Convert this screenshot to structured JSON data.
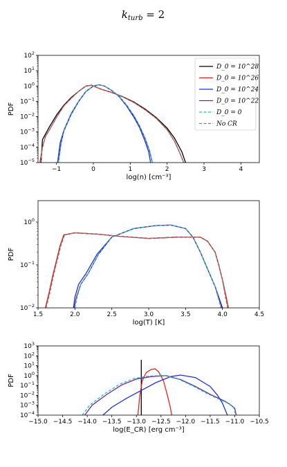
{
  "figure": {
    "suptitle": "k_turb = 2",
    "suptitle_main": "k",
    "suptitle_sub": "turb",
    "suptitle_rest": " = 2"
  },
  "legend": {
    "placement": "top-right of first panel",
    "entries": [
      {
        "label": "D_0 = 10^28",
        "color": "#000000",
        "dash": "solid"
      },
      {
        "label": "D_0 = 10^26",
        "color": "#e8231a",
        "dash": "solid"
      },
      {
        "label": "D_0 = 10^24",
        "color": "#1f2fd6",
        "dash": "solid"
      },
      {
        "label": "D_0 = 10^22",
        "color": "#7b1f86",
        "dash": "solid"
      },
      {
        "label": "D_0 = 0",
        "color": "#17becf",
        "dash": "dashed"
      },
      {
        "label": "No CR",
        "color": "#808080",
        "dash": "dashed"
      }
    ]
  },
  "chart_data": [
    {
      "type": "line",
      "xlabel": "log(n) [cm^-3]",
      "ylabel": "PDF",
      "xlim": [
        -1.5,
        4.5
      ],
      "ylim_log10": [
        -5,
        2
      ],
      "yscale": "log",
      "xticks": [
        -1,
        0,
        1,
        2,
        3,
        4
      ],
      "series": [
        {
          "name": "D_0 = 10^28",
          "color": "#000000",
          "dash": "solid",
          "x": [
            -1.42,
            -1.38,
            -1.3,
            -1.2,
            -1.0,
            -0.8,
            -0.6,
            -0.4,
            -0.2,
            -0.05,
            0.2,
            0.5,
            0.8,
            1.1,
            1.4,
            1.7,
            2.0,
            2.2,
            2.4,
            2.5
          ],
          "logy": [
            -5.0,
            -3.5,
            -3.15,
            -2.7,
            -1.9,
            -1.25,
            -0.75,
            -0.35,
            0.0,
            0.05,
            -0.2,
            -0.42,
            -0.7,
            -1.05,
            -1.5,
            -2.05,
            -2.75,
            -3.4,
            -4.3,
            -5.0
          ]
        },
        {
          "name": "D_0 = 10^26",
          "color": "#e8231a",
          "dash": "solid",
          "x": [
            -1.45,
            -1.38,
            -1.3,
            -1.2,
            -1.0,
            -0.8,
            -0.6,
            -0.4,
            -0.2,
            -0.05,
            0.2,
            0.5,
            0.8,
            1.1,
            1.4,
            1.7,
            2.0,
            2.2,
            2.35,
            2.45
          ],
          "logy": [
            -5.0,
            -4.0,
            -3.3,
            -2.9,
            -2.05,
            -1.3,
            -0.8,
            -0.35,
            0.0,
            0.04,
            -0.2,
            -0.43,
            -0.72,
            -1.08,
            -1.55,
            -2.1,
            -2.85,
            -3.6,
            -4.4,
            -5.0
          ]
        },
        {
          "name": "D_0 = 10^24",
          "color": "#1f2fd6",
          "dash": "solid",
          "x": [
            -0.97,
            -0.9,
            -0.8,
            -0.6,
            -0.4,
            -0.2,
            0.0,
            0.15,
            0.3,
            0.5,
            0.7,
            0.9,
            1.1,
            1.25,
            1.4,
            1.5,
            1.55
          ],
          "logy": [
            -5.0,
            -3.7,
            -2.9,
            -1.8,
            -1.0,
            -0.35,
            0.0,
            0.08,
            0.0,
            -0.3,
            -0.7,
            -1.3,
            -2.05,
            -2.7,
            -3.6,
            -4.3,
            -5.0
          ]
        },
        {
          "name": "D_0 = 10^22",
          "color": "#7b1f86",
          "dash": "solid",
          "x": [
            -0.95,
            -0.88,
            -0.8,
            -0.6,
            -0.4,
            -0.2,
            0.0,
            0.15,
            0.3,
            0.5,
            0.7,
            0.9,
            1.1,
            1.25,
            1.4,
            1.52,
            1.6
          ],
          "logy": [
            -5.0,
            -3.8,
            -2.95,
            -1.85,
            -1.02,
            -0.36,
            0.0,
            0.08,
            0.0,
            -0.3,
            -0.68,
            -1.25,
            -1.95,
            -2.6,
            -3.4,
            -4.2,
            -5.0
          ]
        },
        {
          "name": "D_0 = 0",
          "color": "#17becf",
          "dash": "dashed",
          "x": [
            -0.95,
            -0.88,
            -0.8,
            -0.6,
            -0.4,
            -0.2,
            0.0,
            0.15,
            0.3,
            0.5,
            0.7,
            0.9,
            1.1,
            1.25,
            1.4,
            1.52,
            1.6
          ],
          "logy": [
            -5.0,
            -3.8,
            -2.95,
            -1.85,
            -1.02,
            -0.36,
            0.0,
            0.08,
            0.0,
            -0.3,
            -0.68,
            -1.25,
            -1.95,
            -2.6,
            -3.4,
            -4.2,
            -5.0
          ]
        },
        {
          "name": "No CR",
          "color": "#808080",
          "dash": "dashed",
          "x": [
            -1.43,
            -1.38,
            -1.3,
            -1.2,
            -1.0,
            -0.8,
            -0.6,
            -0.4,
            -0.2,
            -0.05,
            0.2,
            0.5,
            0.8,
            1.1,
            1.4,
            1.7,
            2.0,
            2.2,
            2.35,
            2.45
          ],
          "logy": [
            -5.0,
            -4.0,
            -3.3,
            -2.9,
            -2.05,
            -1.3,
            -0.8,
            -0.35,
            0.0,
            0.04,
            -0.2,
            -0.43,
            -0.72,
            -1.08,
            -1.55,
            -2.1,
            -2.85,
            -3.6,
            -4.4,
            -5.0
          ]
        }
      ]
    },
    {
      "type": "line",
      "xlabel": "log(T) [K]",
      "ylabel": "PDF",
      "xlim": [
        1.5,
        4.5
      ],
      "ylim_log10": [
        -2,
        0.5
      ],
      "yscale": "log",
      "xticks": [
        1.5,
        2.0,
        2.5,
        3.0,
        3.5,
        4.0,
        4.5
      ],
      "series": [
        {
          "name": "D_0 = 10^28",
          "color": "#000000",
          "dash": "solid",
          "x": [
            1.6,
            1.65,
            1.7,
            1.75,
            1.8,
            1.85,
            2.0,
            2.3,
            2.6,
            3.0,
            3.4,
            3.7,
            3.8,
            3.9,
            3.95,
            4.0,
            4.05,
            4.08
          ],
          "logy": [
            -2.0,
            -1.65,
            -1.25,
            -0.9,
            -0.55,
            -0.3,
            -0.25,
            -0.28,
            -0.33,
            -0.38,
            -0.35,
            -0.35,
            -0.45,
            -0.7,
            -1.0,
            -1.35,
            -1.75,
            -2.0
          ]
        },
        {
          "name": "D_0 = 10^26",
          "color": "#e8231a",
          "dash": "solid",
          "x": [
            1.6,
            1.65,
            1.7,
            1.75,
            1.8,
            1.85,
            2.0,
            2.3,
            2.6,
            3.0,
            3.4,
            3.7,
            3.8,
            3.9,
            3.95,
            4.0,
            4.05,
            4.08
          ],
          "logy": [
            -2.0,
            -1.65,
            -1.25,
            -0.9,
            -0.55,
            -0.3,
            -0.25,
            -0.28,
            -0.33,
            -0.38,
            -0.35,
            -0.35,
            -0.45,
            -0.7,
            -1.0,
            -1.35,
            -1.75,
            -2.0
          ]
        },
        {
          "name": "D_0 = 10^24",
          "color": "#1f2fd6",
          "dash": "solid",
          "x": [
            1.98,
            2.0,
            2.05,
            2.15,
            2.3,
            2.5,
            2.8,
            3.1,
            3.3,
            3.5,
            3.6,
            3.7,
            3.8,
            3.9,
            4.0
          ],
          "logy": [
            -2.0,
            -1.75,
            -1.45,
            -1.2,
            -0.75,
            -0.35,
            -0.15,
            -0.08,
            -0.07,
            -0.15,
            -0.35,
            -0.7,
            -1.1,
            -1.5,
            -2.0
          ]
        },
        {
          "name": "D_0 = 10^22",
          "color": "#7b1f86",
          "dash": "solid",
          "x": [
            1.99,
            2.02,
            2.08,
            2.18,
            2.32,
            2.5,
            2.8,
            3.1,
            3.3,
            3.5,
            3.6,
            3.7,
            3.8,
            3.9,
            3.99
          ],
          "logy": [
            -2.0,
            -1.75,
            -1.45,
            -1.2,
            -0.75,
            -0.35,
            -0.15,
            -0.08,
            -0.07,
            -0.15,
            -0.35,
            -0.7,
            -1.1,
            -1.5,
            -2.0
          ]
        },
        {
          "name": "D_0 = 0",
          "color": "#17becf",
          "dash": "dashed",
          "x": [
            2.0,
            2.03,
            2.08,
            2.18,
            2.32,
            2.5,
            2.8,
            3.1,
            3.3,
            3.5,
            3.6,
            3.7,
            3.8,
            3.9,
            3.98
          ],
          "logy": [
            -2.0,
            -1.75,
            -1.45,
            -1.2,
            -0.75,
            -0.35,
            -0.15,
            -0.08,
            -0.07,
            -0.15,
            -0.35,
            -0.7,
            -1.1,
            -1.5,
            -2.0
          ]
        },
        {
          "name": "No CR",
          "color": "#808080",
          "dash": "dashed",
          "x": [
            1.61,
            1.66,
            1.71,
            1.76,
            1.81,
            1.86,
            2.0,
            2.3,
            2.6,
            3.0,
            3.4,
            3.7,
            3.8,
            3.9,
            3.95,
            4.0,
            4.04,
            4.07
          ],
          "logy": [
            -2.0,
            -1.65,
            -1.25,
            -0.9,
            -0.55,
            -0.3,
            -0.25,
            -0.28,
            -0.33,
            -0.38,
            -0.35,
            -0.35,
            -0.45,
            -0.7,
            -1.0,
            -1.35,
            -1.75,
            -2.0
          ]
        }
      ]
    },
    {
      "type": "line",
      "xlabel": "log(E_CR) [erg cm^-3]",
      "ylabel": "PDF",
      "xlim": [
        -15.0,
        -10.5
      ],
      "ylim_log10": [
        -4,
        3
      ],
      "yscale": "log",
      "xticks": [
        -15.0,
        -14.5,
        -14.0,
        -13.5,
        -13.0,
        -12.5,
        -12.0,
        -11.5,
        -11.0,
        -10.5
      ],
      "series": [
        {
          "name": "D_0 = 10^28",
          "color": "#000000",
          "dash": "solid",
          "x": [
            -12.9,
            -12.9,
            -12.9
          ],
          "logy": [
            -4.0,
            1.6,
            -4.0
          ]
        },
        {
          "name": "D_0 = 10^26",
          "color": "#e8231a",
          "dash": "solid",
          "x": [
            -12.97,
            -12.93,
            -12.88,
            -12.8,
            -12.7,
            -12.62,
            -12.55,
            -12.45,
            -12.38,
            -12.32,
            -12.28
          ],
          "logy": [
            -4.0,
            -2.0,
            -0.5,
            0.3,
            0.62,
            0.68,
            0.4,
            -0.5,
            -1.8,
            -3.0,
            -4.0
          ]
        },
        {
          "name": "D_0 = 10^24",
          "color": "#1f2fd6",
          "dash": "solid",
          "x": [
            -13.68,
            -13.5,
            -13.2,
            -12.9,
            -12.6,
            -12.3,
            -12.1,
            -11.8,
            -11.5,
            -11.35,
            -11.25,
            -11.2,
            -11.15
          ],
          "logy": [
            -4.0,
            -3.2,
            -2.3,
            -1.5,
            -0.7,
            -0.1,
            0.05,
            -0.2,
            -1.1,
            -2.0,
            -2.8,
            -3.4,
            -4.0
          ]
        },
        {
          "name": "D_0 = 10^22",
          "color": "#7b1f86",
          "dash": "solid",
          "x": [
            -14.05,
            -13.9,
            -13.6,
            -13.3,
            -13.0,
            -12.7,
            -12.4,
            -12.1,
            -11.8,
            -11.5,
            -11.2,
            -11.1,
            -11.0,
            -10.97
          ],
          "logy": [
            -4.0,
            -3.0,
            -1.9,
            -0.95,
            -0.35,
            -0.1,
            0.0,
            -0.4,
            -1.1,
            -1.9,
            -2.6,
            -2.9,
            -3.3,
            -4.0
          ]
        },
        {
          "name": "D_0 = 0",
          "color": "#17becf",
          "dash": "dashed",
          "x": [
            -14.1,
            -13.95,
            -13.65,
            -13.35,
            -13.05,
            -12.75,
            -12.45,
            -12.15,
            -11.85,
            -11.55,
            -11.25,
            -11.12,
            -11.02,
            -10.98
          ],
          "logy": [
            -4.0,
            -3.0,
            -1.85,
            -0.9,
            -0.3,
            -0.05,
            0.02,
            -0.35,
            -1.05,
            -1.85,
            -2.55,
            -2.85,
            -3.25,
            -4.0
          ]
        },
        {
          "name": "No CR",
          "color": "#808080",
          "dash": "dashed",
          "x": [],
          "logy": []
        }
      ]
    }
  ]
}
